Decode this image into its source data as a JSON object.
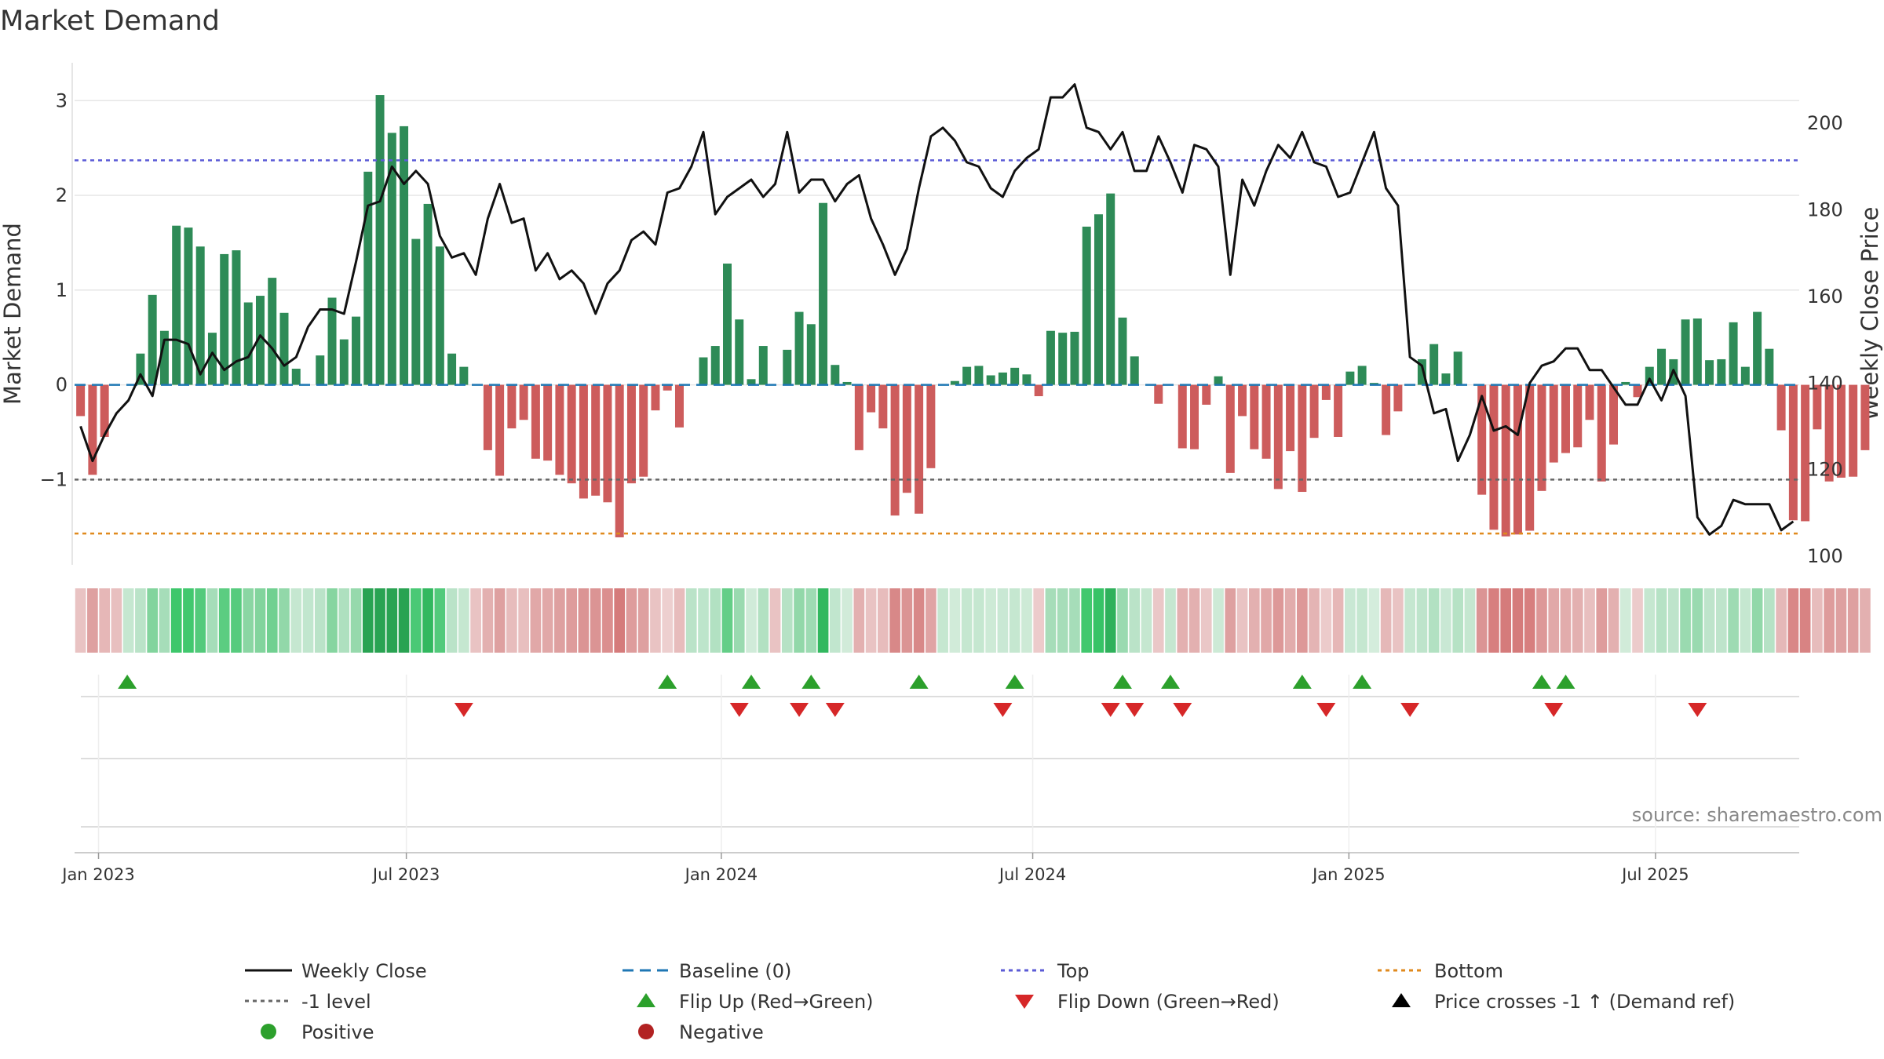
{
  "chart_data": {
    "type": "bar",
    "title": "Market Demand",
    "ylabel_left": "Market Demand",
    "ylabel_right": "Weekly Close Price",
    "ylim_left": [
      -1.9,
      3.4
    ],
    "ylim_right": [
      98,
      214
    ],
    "yticks_left": [
      {
        "value": 3,
        "label": "3"
      },
      {
        "value": 2,
        "label": "2"
      },
      {
        "value": 1,
        "label": "1"
      },
      {
        "value": 0,
        "label": "0"
      },
      {
        "value": -1,
        "label": "−1"
      }
    ],
    "yticks_right": [
      {
        "value": 200,
        "label": "200"
      },
      {
        "value": 180,
        "label": "180"
      },
      {
        "value": 160,
        "label": "160"
      },
      {
        "value": 140,
        "label": "140"
      },
      {
        "value": 120,
        "label": "120"
      },
      {
        "value": 100,
        "label": "100"
      }
    ],
    "x_start": "2022-12-26",
    "weeks": 144,
    "date_ticks": [
      {
        "week": 2,
        "label": "Jan 2023"
      },
      {
        "week": 27.7,
        "label": "Jul 2023"
      },
      {
        "week": 54,
        "label": "Jan 2024"
      },
      {
        "week": 80,
        "label": "Jul 2024"
      },
      {
        "week": 106.4,
        "label": "Jan 2025"
      },
      {
        "week": 132,
        "label": "Jul 2025"
      }
    ],
    "top_level": 2.37,
    "bottom_level": -1.57,
    "minus_one_level": -1,
    "demand": [
      -0.33,
      -0.95,
      -0.55,
      0,
      0,
      0.33,
      0.95,
      0.57,
      1.68,
      1.66,
      1.46,
      0.55,
      1.38,
      1.42,
      0.87,
      0.94,
      1.13,
      0.76,
      0.17,
      0,
      0.31,
      0.92,
      0.48,
      0.72,
      2.25,
      3.06,
      2.66,
      2.73,
      1.54,
      1.91,
      1.46,
      0.33,
      0.19,
      0,
      -0.69,
      -0.96,
      -0.46,
      -0.37,
      -0.78,
      -0.8,
      -0.95,
      -1.04,
      -1.2,
      -1.17,
      -1.24,
      -1.61,
      -1.04,
      -0.97,
      -0.27,
      -0.06,
      -0.45,
      0,
      0.29,
      0.41,
      1.28,
      0.69,
      0.06,
      0.41,
      0,
      0.37,
      0.77,
      0.64,
      1.92,
      0.21,
      0.03,
      -0.69,
      -0.29,
      -0.46,
      -1.38,
      -1.14,
      -1.36,
      -0.88,
      0,
      0.04,
      0.19,
      0.2,
      0.1,
      0.13,
      0.18,
      0.11,
      -0.12,
      0.57,
      0.55,
      0.56,
      1.67,
      1.8,
      2.02,
      0.71,
      0.3,
      0,
      -0.2,
      0,
      -0.67,
      -0.68,
      -0.21,
      0.09,
      -0.93,
      -0.33,
      -0.68,
      -0.78,
      -1.1,
      -0.7,
      -1.13,
      -0.56,
      -0.16,
      -0.55,
      0.14,
      0.2,
      0.02,
      -0.53,
      -0.28,
      0,
      0.27,
      0.43,
      0.12,
      0.35,
      0,
      -1.16,
      -1.53,
      -1.6,
      -1.58,
      -1.54,
      -1.12,
      -0.82,
      -0.72,
      -0.66,
      -0.37,
      -1.02,
      -0.63,
      0.03,
      -0.13,
      0.19,
      0.38,
      0.27,
      0.69,
      0.7,
      0.26,
      0.27,
      0.66,
      0.19,
      0.77,
      0.38,
      -0.48,
      -1.43,
      -1.44,
      -0.47,
      -1.02,
      -0.98,
      -0.97,
      -0.69
    ],
    "close": [
      130,
      122,
      128,
      133,
      136,
      142,
      137,
      150,
      150,
      149,
      142,
      147,
      143,
      145,
      146,
      151,
      148,
      144,
      146,
      153,
      157,
      157,
      156,
      168,
      181,
      182,
      190,
      186,
      189,
      186,
      174,
      169,
      170,
      165,
      178,
      186,
      177,
      178,
      166,
      170,
      164,
      166,
      163,
      156,
      163,
      166,
      173,
      175,
      172,
      184,
      185,
      190,
      198,
      179,
      183,
      185,
      187,
      183,
      186,
      198,
      184,
      187,
      187,
      182,
      186,
      188,
      178,
      172,
      165,
      171,
      185,
      197,
      199,
      196,
      191,
      190,
      185,
      183,
      189,
      192,
      194,
      206,
      206,
      209,
      199,
      198,
      194,
      198,
      189,
      189,
      197,
      191,
      184,
      195,
      194,
      190,
      165,
      187,
      181,
      189,
      195,
      192,
      198,
      191,
      190,
      183,
      184,
      191,
      198,
      185,
      181,
      146,
      144,
      133,
      134,
      122,
      128,
      137,
      129,
      130,
      128,
      140,
      144,
      145,
      148,
      148,
      143,
      143,
      139,
      135,
      135,
      141,
      136,
      143,
      137,
      109,
      105,
      107,
      113,
      112,
      112,
      112,
      106,
      108
    ],
    "heat_values": [
      -0.33,
      -0.95,
      -0.55,
      -0.4,
      0.2,
      0.33,
      0.95,
      0.57,
      1.68,
      1.66,
      1.46,
      0.55,
      1.38,
      1.42,
      0.87,
      0.94,
      1.13,
      0.76,
      0.17,
      0.25,
      0.31,
      0.92,
      0.48,
      0.72,
      2.25,
      3.06,
      2.66,
      2.73,
      1.54,
      1.91,
      1.46,
      0.33,
      0.19,
      -0.3,
      -0.69,
      -0.96,
      -0.46,
      -0.37,
      -0.78,
      -0.8,
      -0.95,
      -1.04,
      -1.2,
      -1.17,
      -1.24,
      -1.61,
      -1.04,
      -0.97,
      -0.27,
      -0.06,
      -0.45,
      0.3,
      0.29,
      0.41,
      1.28,
      0.69,
      0.06,
      0.41,
      -0.3,
      0.37,
      0.77,
      0.64,
      1.92,
      0.21,
      0.03,
      -0.69,
      -0.29,
      -0.46,
      -1.38,
      -1.14,
      -1.36,
      -0.88,
      0.2,
      0.04,
      0.19,
      0.2,
      0.1,
      0.13,
      0.18,
      0.11,
      -0.12,
      0.57,
      0.55,
      0.56,
      1.67,
      1.8,
      2.02,
      0.71,
      0.3,
      0.2,
      -0.2,
      0.2,
      -0.67,
      -0.68,
      -0.21,
      0.09,
      -0.93,
      -0.33,
      -0.68,
      -0.78,
      -1.1,
      -0.7,
      -1.13,
      -0.56,
      -0.16,
      -0.55,
      0.14,
      0.2,
      0.02,
      -0.53,
      -0.28,
      0.2,
      0.27,
      0.43,
      0.12,
      0.35,
      0.2,
      -1.16,
      -1.53,
      -1.6,
      -1.58,
      -1.54,
      -1.12,
      -0.82,
      -0.72,
      -0.66,
      -0.37,
      -1.02,
      -0.63,
      0.03,
      -0.13,
      0.19,
      0.38,
      0.27,
      0.69,
      0.7,
      0.26,
      0.27,
      0.66,
      0.19,
      0.77,
      0.38,
      -0.48,
      -1.43,
      -1.44,
      -0.47,
      -1.02,
      -0.98,
      -0.97,
      -0.69
    ],
    "flip_up_weeks": [
      4.4,
      49.5,
      56.5,
      61.5,
      70.5,
      78.5,
      87.5,
      91.5,
      102.5,
      107.5,
      122.5,
      124.5
    ],
    "flip_down_weeks": [
      32.5,
      55.5,
      60.5,
      63.5,
      77.5,
      86.5,
      88.5,
      92.5,
      104.5,
      111.5,
      123.5,
      135.5
    ],
    "source": "source: sharemaestro.com",
    "legend": [
      {
        "label": "Weekly Close",
        "marker": "line",
        "color": "#111111"
      },
      {
        "label": "Baseline (0)",
        "marker": "dash",
        "color": "#1f77b4"
      },
      {
        "label": "Top",
        "marker": "dot",
        "color": "#5b5bd6"
      },
      {
        "label": "Bottom",
        "marker": "dot",
        "color": "#e08a1e"
      },
      {
        "label": "-1 level",
        "marker": "dot",
        "color": "#666666"
      },
      {
        "label": "Flip Up (Red→Green)",
        "marker": "triangle-up",
        "color": "#2ca02c"
      },
      {
        "label": "Flip Down (Green→Red)",
        "marker": "triangle-down",
        "color": "#d62728"
      },
      {
        "label": "Price crosses -1 ↑ (Demand ref)",
        "marker": "triangle-up",
        "color": "#000000"
      },
      {
        "label": "Positive",
        "marker": "circle",
        "color": "#2ca02c"
      },
      {
        "label": "Negative",
        "marker": "circle",
        "color": "#b22222"
      }
    ],
    "colors": {
      "positive_bar": "#2e8b57",
      "negative_bar": "#cd5c5c",
      "price_line": "#111111",
      "baseline": "#1f77b4",
      "top": "#5b5bd6",
      "bottom": "#e08a1e",
      "minus_one": "#666666",
      "flip_up": "#2ca02c",
      "flip_down": "#d62728",
      "grid": "#e6e6e6"
    }
  }
}
